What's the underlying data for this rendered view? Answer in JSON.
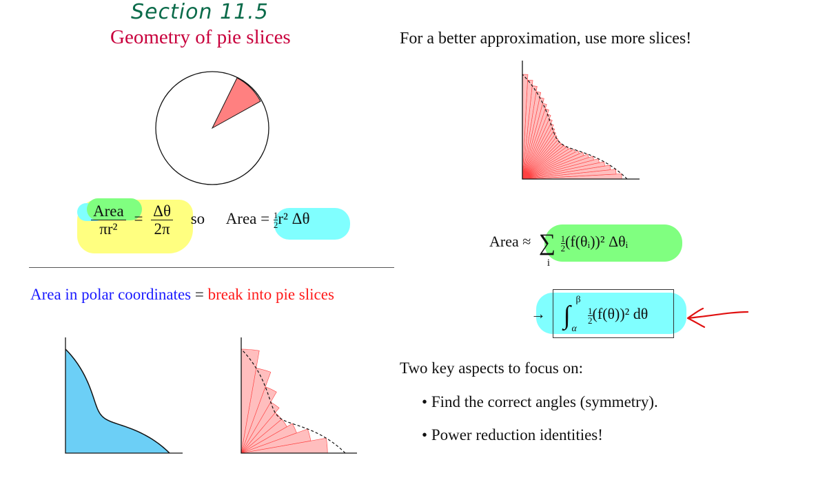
{
  "header": {
    "section_label": "Section 11.5",
    "title": "Geometry of pie slices",
    "right_heading": "For a better approximation, use more slices!"
  },
  "formula_ratio": {
    "area": "Area",
    "pi_r2": "πr²",
    "equals": "=",
    "delta_theta": "Δθ",
    "two_pi": "2π",
    "so": "so",
    "area2": "Area =",
    "half_num": "1",
    "half_den": "2",
    "rest": "r² Δθ"
  },
  "polar_line": {
    "part1": "Area in polar coordinates",
    "equals": " = ",
    "part2": "break into pie slices"
  },
  "sum_formula": {
    "lhs": "Area ≈",
    "sigma": "∑",
    "index": "i",
    "half_num": "1",
    "half_den": "2",
    "body": "(f(θᵢ))² Δθᵢ"
  },
  "integral_formula": {
    "arrow": "→",
    "integral": "∫",
    "upper": "β",
    "lower": "α",
    "half_num": "1",
    "half_den": "2",
    "body": "(f(θ))² dθ"
  },
  "aspects": {
    "heading": "Two key aspects to focus on:",
    "items": [
      "Find the correct angles (symmetry).",
      "Power reduction identities!"
    ]
  },
  "colors": {
    "title": "#c8003c",
    "section": "#0b6b4a",
    "blue_text": "#1a1aff",
    "red_text": "#ff1a1a",
    "region_fill": "#6ccff6",
    "slice_fill": "#ffb3b3",
    "slice_stroke": "#ff4040",
    "highlight_yellow": "#ffff80",
    "highlight_green": "#80ff80",
    "highlight_cyan": "#80ffff"
  },
  "slices": {
    "coarse_count": 9,
    "fine_count": 30
  }
}
